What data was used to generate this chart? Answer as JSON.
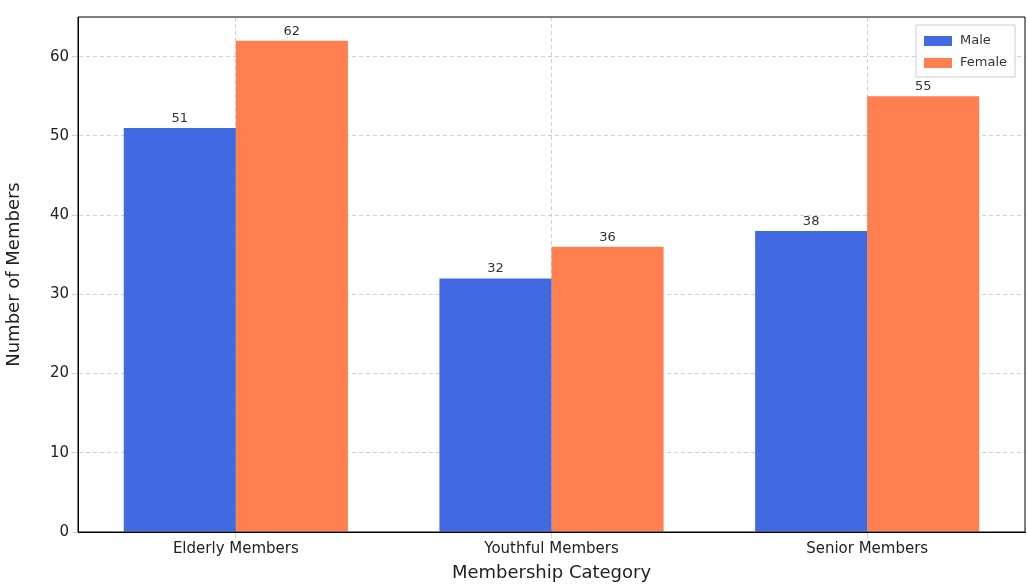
{
  "chart_data": {
    "type": "bar",
    "xlabel": "Membership Category",
    "ylabel": "Number of Members",
    "categories": [
      "Elderly Members",
      "Youthful Members",
      "Senior Members"
    ],
    "series": [
      {
        "name": "Male",
        "color": "#4169e1",
        "values": [
          51,
          32,
          38
        ]
      },
      {
        "name": "Female",
        "color": "#ff7f50",
        "values": [
          62,
          36,
          55
        ]
      }
    ],
    "ylim": [
      0,
      65
    ],
    "yticks": [
      0,
      10,
      20,
      30,
      40,
      50,
      60
    ],
    "grid": true,
    "legend": "top right",
    "data_labels": true
  }
}
